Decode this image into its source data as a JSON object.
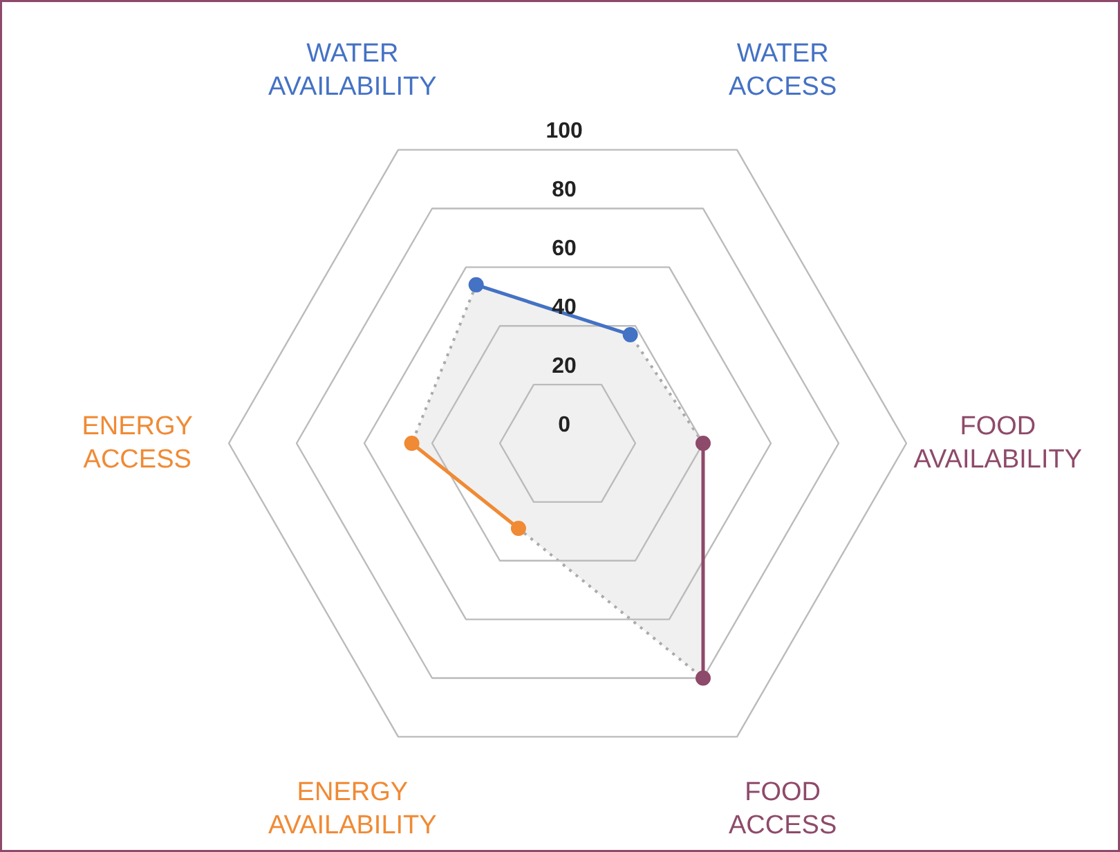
{
  "chart_data": {
    "type": "radar",
    "categories": [
      "WATER AVAILABILITY",
      "WATER ACCESS",
      "FOOD AVAILABILITY",
      "FOOD ACCESS",
      "ENERGY AVAILABILITY",
      "ENERGY ACCESS"
    ],
    "ylim": [
      0,
      100
    ],
    "yticks": [
      0,
      20,
      40,
      60,
      80,
      100
    ],
    "grid": true,
    "series": [
      {
        "color": "#f0f0f0",
        "colors": [
          "#4472c4",
          "#4472c4",
          "#8e4a6a",
          "#8e4a6a",
          "#f08a34",
          "#f08a34"
        ],
        "line_style": "dotted",
        "marker": "circle",
        "values": [
          54,
          37,
          40,
          80,
          29,
          46
        ]
      }
    ]
  }
}
